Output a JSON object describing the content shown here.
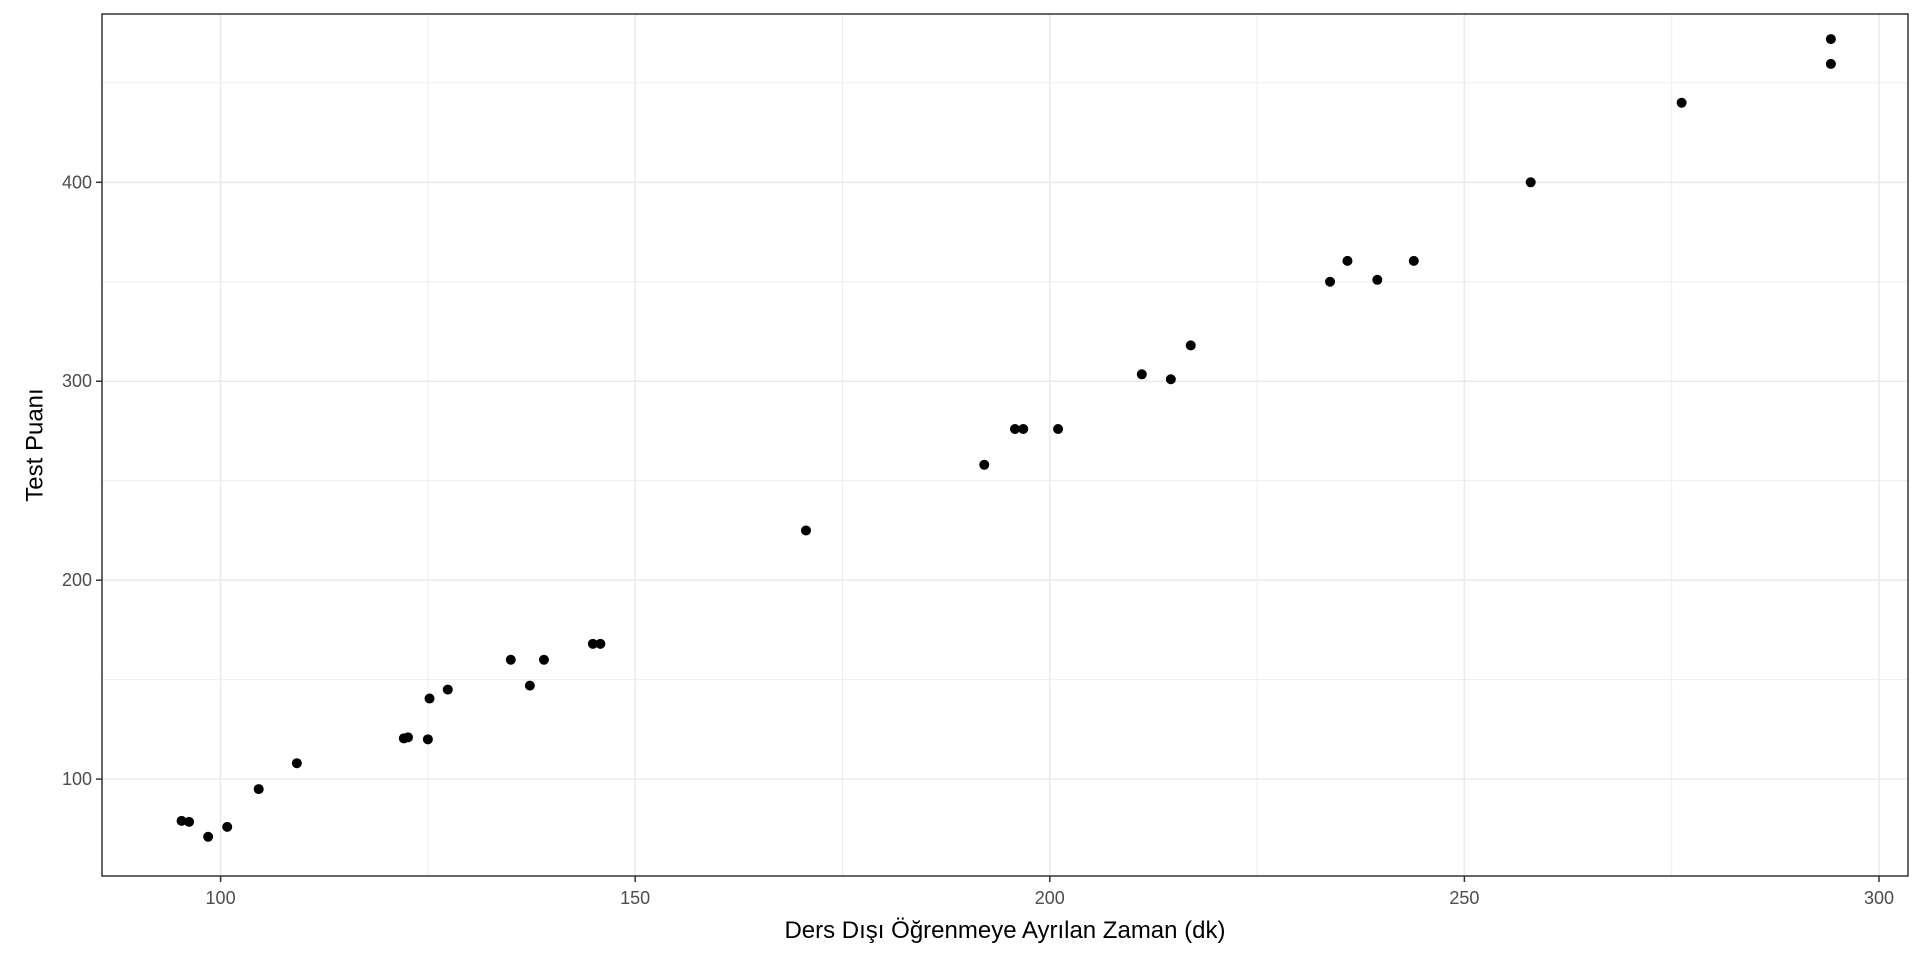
{
  "chart_data": {
    "type": "scatter",
    "title": "",
    "xlabel": "Ders Dışı Öğrenmeye Ayrılan Zaman (dk)",
    "ylabel": "Test Puanı",
    "xlim": [
      85.7,
      303.5
    ],
    "ylim": [
      51.3,
      484.6
    ],
    "x_ticks": [
      100,
      150,
      200,
      250,
      300
    ],
    "y_ticks": [
      100,
      200,
      300,
      400
    ],
    "grid": true,
    "legend": "none",
    "colors": {
      "points": "#000000",
      "grid": "#ebebeb",
      "panel_border": "#333333",
      "tick_text": "#4d4d4d",
      "title_text": "#000000",
      "background": "#ffffff"
    },
    "points": [
      {
        "x": 95.3,
        "y": 79
      },
      {
        "x": 96.2,
        "y": 78.5
      },
      {
        "x": 98.5,
        "y": 71
      },
      {
        "x": 100.8,
        "y": 76
      },
      {
        "x": 104.6,
        "y": 95
      },
      {
        "x": 109.2,
        "y": 108
      },
      {
        "x": 122.1,
        "y": 120.5
      },
      {
        "x": 122.6,
        "y": 121
      },
      {
        "x": 125.0,
        "y": 120
      },
      {
        "x": 125.2,
        "y": 140.5
      },
      {
        "x": 127.4,
        "y": 145
      },
      {
        "x": 135.0,
        "y": 160
      },
      {
        "x": 137.3,
        "y": 147
      },
      {
        "x": 139.0,
        "y": 160
      },
      {
        "x": 144.9,
        "y": 168
      },
      {
        "x": 145.8,
        "y": 168
      },
      {
        "x": 170.6,
        "y": 225
      },
      {
        "x": 192.1,
        "y": 258
      },
      {
        "x": 195.8,
        "y": 276
      },
      {
        "x": 196.8,
        "y": 276
      },
      {
        "x": 201.0,
        "y": 276
      },
      {
        "x": 211.1,
        "y": 303.5
      },
      {
        "x": 214.6,
        "y": 301
      },
      {
        "x": 217.0,
        "y": 318
      },
      {
        "x": 233.8,
        "y": 350
      },
      {
        "x": 235.9,
        "y": 360.5
      },
      {
        "x": 239.5,
        "y": 351
      },
      {
        "x": 243.9,
        "y": 360.5
      },
      {
        "x": 258.0,
        "y": 400
      },
      {
        "x": 276.2,
        "y": 440
      },
      {
        "x": 294.2,
        "y": 459.5
      },
      {
        "x": 294.2,
        "y": 472
      }
    ]
  }
}
